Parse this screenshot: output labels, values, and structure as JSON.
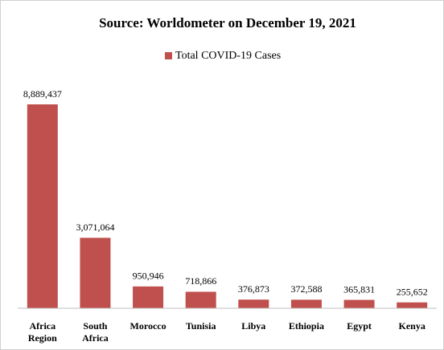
{
  "chart_data": {
    "type": "bar",
    "title": "Source: Worldometer on December 19, 2021",
    "categories": [
      "Africa Region",
      "South Africa",
      "Morocco",
      "Tunisia",
      "Libya",
      "Ethiopia",
      "Egypt",
      "Kenya"
    ],
    "series": [
      {
        "name": "Total COVID-19 Cases",
        "color": "#c0504d",
        "values": [
          8889437,
          3071064,
          950946,
          718866,
          376873,
          372588,
          365831,
          255652
        ],
        "value_labels": [
          "8,889,437",
          "3,071,064",
          "950,946",
          "718,866",
          "376,873",
          "372,588",
          "365,831",
          "255,652"
        ]
      }
    ],
    "legend": "top"
  }
}
